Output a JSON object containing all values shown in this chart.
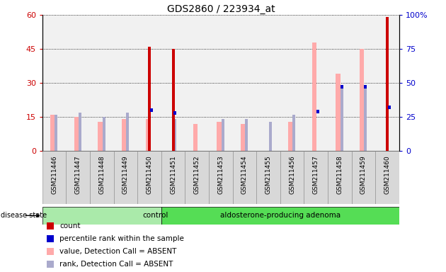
{
  "title": "GDS2860 / 223934_at",
  "samples": [
    "GSM211446",
    "GSM211447",
    "GSM211448",
    "GSM211449",
    "GSM211450",
    "GSM211451",
    "GSM211452",
    "GSM211453",
    "GSM211454",
    "GSM211455",
    "GSM211456",
    "GSM211457",
    "GSM211458",
    "GSM211459",
    "GSM211460"
  ],
  "n_control": 5,
  "n_adenoma": 10,
  "count": [
    0,
    0,
    0,
    0,
    46,
    45,
    0,
    0,
    0,
    0,
    0,
    0,
    0,
    0,
    59
  ],
  "percentile_rank": [
    0,
    0,
    0,
    0,
    30,
    28,
    0,
    0,
    0,
    0,
    0,
    29,
    47,
    47,
    32
  ],
  "value_absent": [
    16,
    15,
    13,
    14,
    14,
    0,
    12,
    13,
    12,
    0,
    13,
    48,
    34,
    45,
    0
  ],
  "rank_absent": [
    16,
    17,
    15,
    17,
    0,
    14,
    0,
    14,
    14,
    13,
    16,
    0,
    28,
    28,
    0
  ],
  "left_ylim": [
    0,
    60
  ],
  "right_ylim": [
    0,
    100
  ],
  "left_yticks": [
    0,
    15,
    30,
    45,
    60
  ],
  "right_yticks": [
    0,
    25,
    50,
    75,
    100
  ],
  "color_count": "#cc0000",
  "color_percentile": "#0000cc",
  "color_value_absent": "#ffaaaa",
  "color_rank_absent": "#aaaacc",
  "color_control_bg": "#aaeaaa",
  "color_adenoma_bg": "#55dd55",
  "color_col_bg": "#d8d8d8",
  "group_label_control": "control",
  "group_label_adenoma": "aldosterone-producing adenoma",
  "disease_state_label": "disease state",
  "legend_items": [
    "count",
    "percentile rank within the sample",
    "value, Detection Call = ABSENT",
    "rank, Detection Call = ABSENT"
  ]
}
